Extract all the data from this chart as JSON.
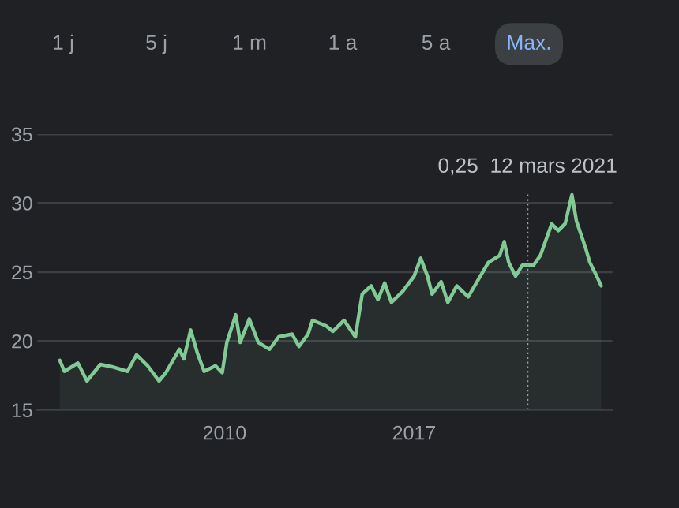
{
  "chart_data": {
    "type": "area",
    "x": [
      "2003-12",
      "2004-02",
      "2004-08",
      "2004-12",
      "2005-06",
      "2005-12",
      "2006-06",
      "2006-10",
      "2007-03",
      "2007-08",
      "2007-11",
      "2008-05",
      "2008-07",
      "2008-10",
      "2009-01",
      "2009-04",
      "2009-09",
      "2009-12",
      "2010-02",
      "2010-06",
      "2010-08",
      "2010-12",
      "2011-04",
      "2011-09",
      "2012-01",
      "2012-07",
      "2012-10",
      "2013-02",
      "2013-04",
      "2013-10",
      "2014-01",
      "2014-06",
      "2014-11",
      "2015-02",
      "2015-06",
      "2015-09",
      "2015-12",
      "2016-03",
      "2016-08",
      "2017-01",
      "2017-04",
      "2017-07",
      "2017-09",
      "2018-01",
      "2018-04",
      "2018-08",
      "2019-01",
      "2019-05",
      "2019-10",
      "2020-03",
      "2020-05",
      "2020-07",
      "2020-10",
      "2021-01",
      "2021-06",
      "2021-09",
      "2022-02",
      "2022-05",
      "2022-08",
      "2022-11",
      "2023-01",
      "2023-05",
      "2023-07",
      "2023-10",
      "2023-12"
    ],
    "series": [
      {
        "color": "#81c995",
        "values": [
          18.6,
          17.8,
          18.4,
          17.1,
          18.3,
          18.1,
          17.8,
          19.0,
          18.2,
          17.1,
          17.7,
          19.4,
          18.7,
          20.8,
          19.1,
          17.8,
          18.2,
          17.7,
          19.9,
          21.9,
          19.9,
          21.6,
          19.9,
          19.4,
          20.3,
          20.5,
          19.6,
          20.5,
          21.5,
          21.1,
          20.7,
          21.5,
          20.3,
          23.4,
          24.0,
          23.0,
          24.2,
          22.8,
          23.6,
          24.7,
          26.0,
          24.7,
          23.4,
          24.3,
          22.8,
          24.0,
          23.2,
          24.3,
          25.7,
          26.2,
          27.2,
          25.7,
          24.7,
          25.5,
          25.5,
          26.2,
          28.5,
          28.0,
          28.5,
          30.6,
          28.7,
          26.8,
          25.7,
          24.7,
          24.0
        ]
      }
    ],
    "xlim": [
      "2003-02",
      "2024-05"
    ],
    "xticks": [
      "2010",
      "2017"
    ],
    "ylim": [
      15,
      35
    ],
    "yticks": [
      15,
      20,
      25,
      30,
      35
    ],
    "grid": "y",
    "ref_lines": [
      {
        "axis": "x",
        "value": "2021-03-12",
        "label": "0,25  12 mars 2021",
        "line_style": "dotted",
        "color": "#9aa0a6"
      }
    ],
    "annotations": [
      "1 j",
      "5 j",
      "1 m",
      "1 a",
      "5 a",
      "Max."
    ]
  }
}
